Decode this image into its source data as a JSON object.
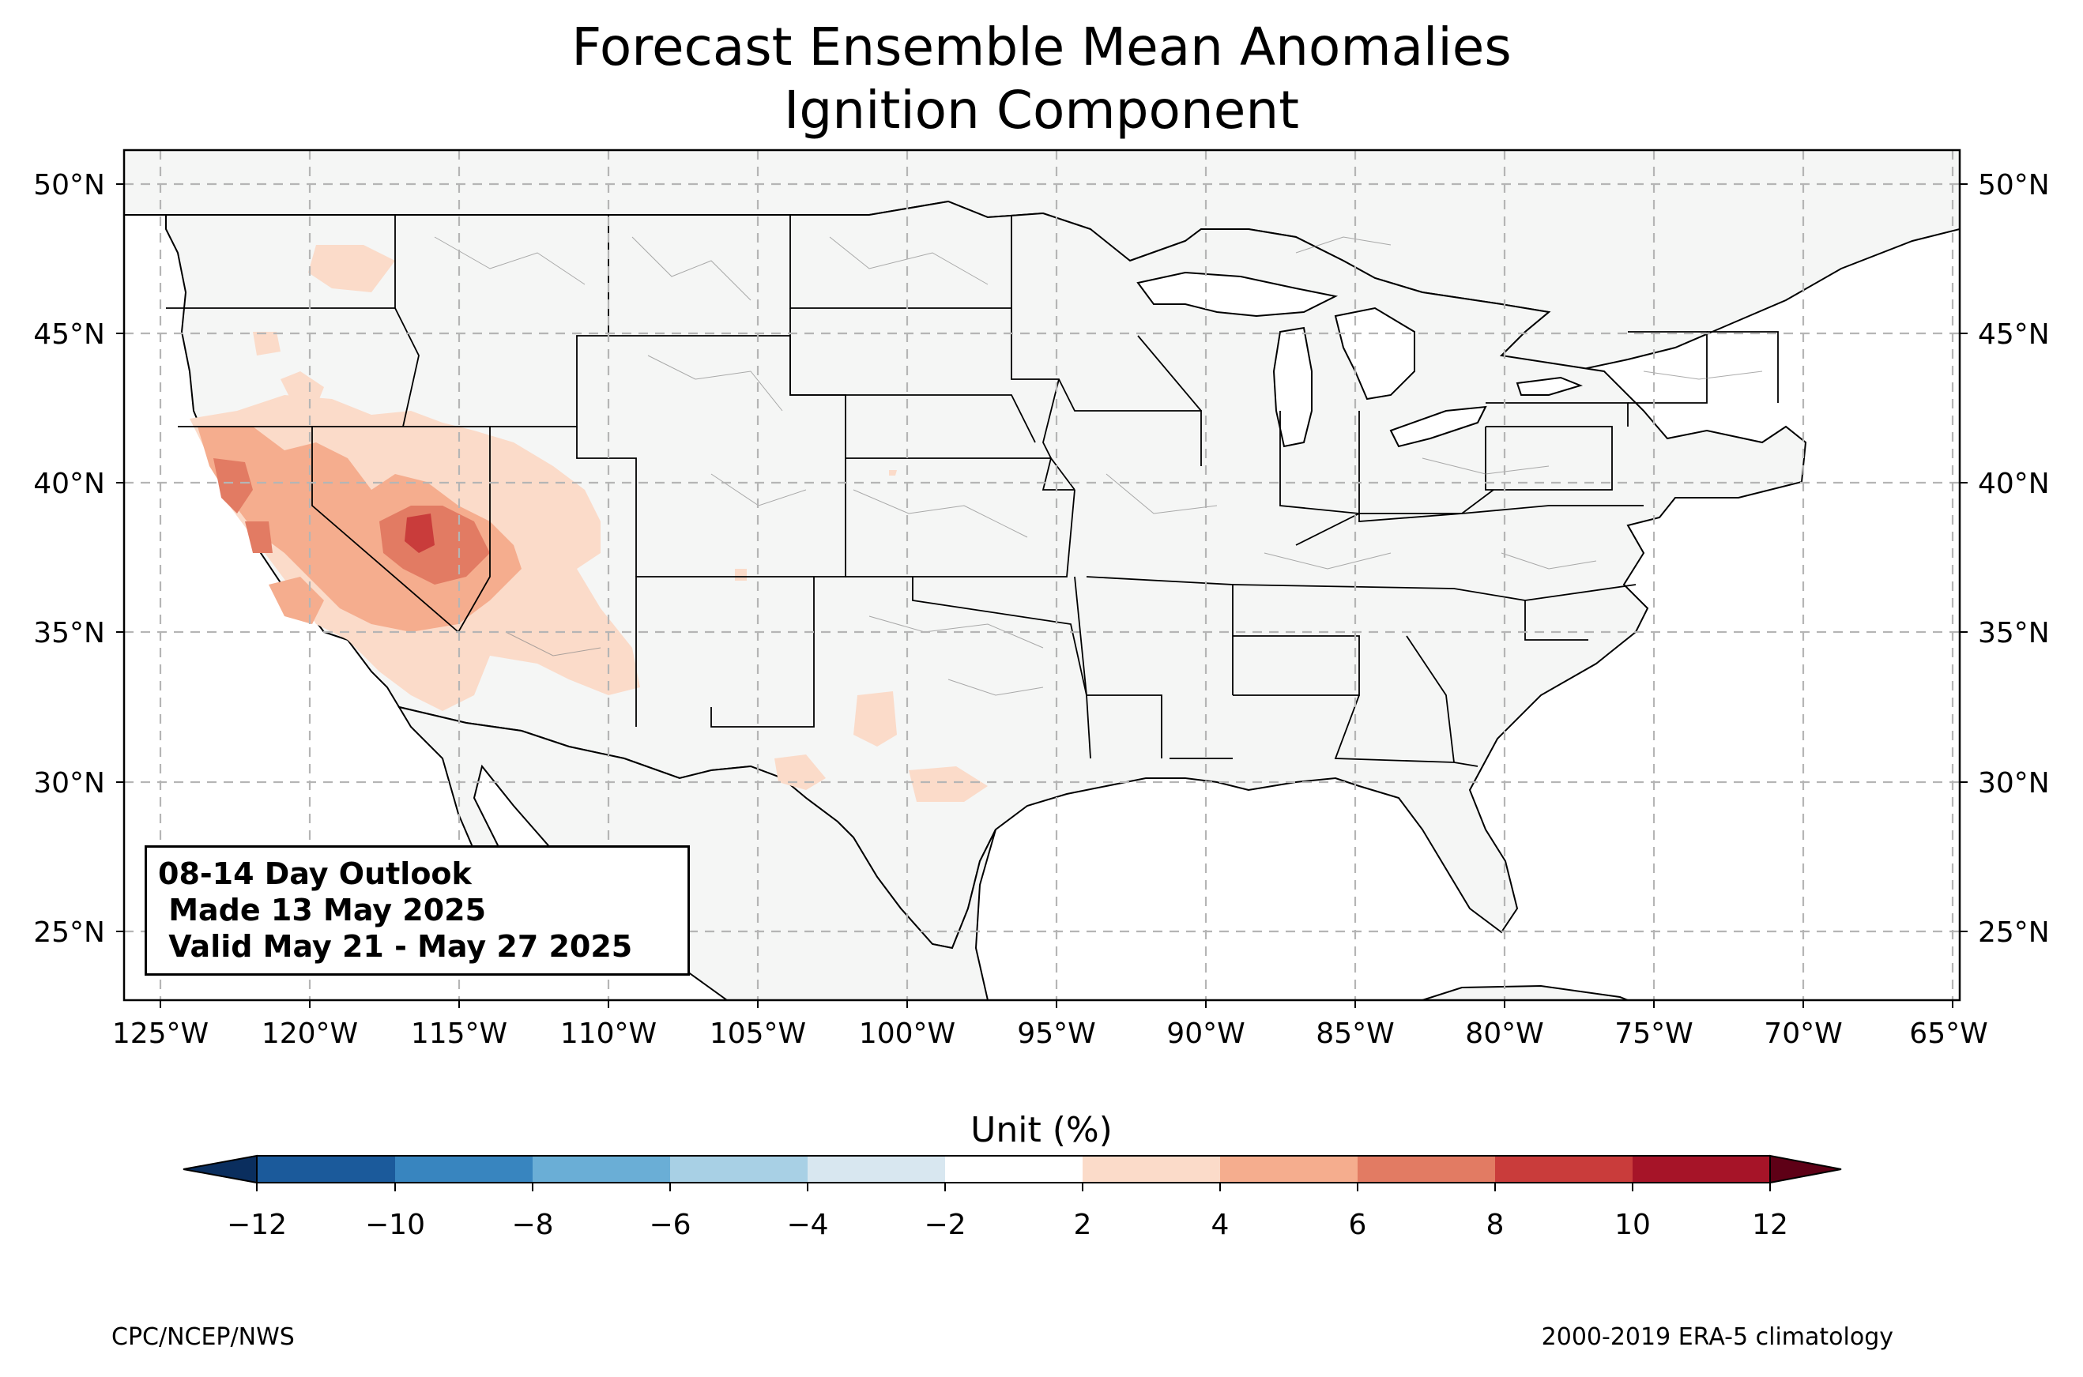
{
  "title": {
    "line1": "Forecast Ensemble Mean Anomalies",
    "line2": "Ignition Component"
  },
  "map": {
    "lon_ticks": [
      "125°W",
      "120°W",
      "115°W",
      "110°W",
      "105°W",
      "100°W",
      "95°W",
      "90°W",
      "85°W",
      "80°W",
      "75°W",
      "70°W",
      "65°W"
    ],
    "lat_ticks": [
      "50°N",
      "45°N",
      "40°N",
      "35°N",
      "30°N",
      "25°N"
    ],
    "lon_range": [
      -126.2,
      -64.8
    ],
    "lat_range": [
      22.8,
      51.2
    ],
    "land_color": "#f5f6f5",
    "border_color": "#000000",
    "grid": "dashed"
  },
  "outlook": {
    "line1": "08-14 Day Outlook",
    "line2": " Made 13 May 2025",
    "line3": " Valid May 21 - May 27 2025"
  },
  "colorbar": {
    "label": "Unit (%)",
    "ticks": [
      "−12",
      "−10",
      "−8",
      "−6",
      "−4",
      "−2",
      "2",
      "4",
      "6",
      "8",
      "10",
      "12"
    ],
    "colors": [
      "#1b5a9b",
      "#3885bf",
      "#6aaed6",
      "#a8d0e5",
      "#d8e7f0",
      "#ffffff",
      "#fbdbc9",
      "#f5ad8e",
      "#e27b63",
      "#c93c3b",
      "#a61428"
    ],
    "under_color": "#0a2e5e",
    "over_color": "#5e0016"
  },
  "footer": {
    "left": "CPC/NCEP/NWS",
    "right": "2000-2019 ERA-5 climatology"
  },
  "anomaly_areas": [
    {
      "level": "2-4",
      "color": "#fbdbc9"
    },
    {
      "level": "4-6",
      "color": "#f5ad8e"
    },
    {
      "level": "6-8",
      "color": "#e27b63"
    },
    {
      "level": "8-10",
      "color": "#c93c3b"
    }
  ]
}
